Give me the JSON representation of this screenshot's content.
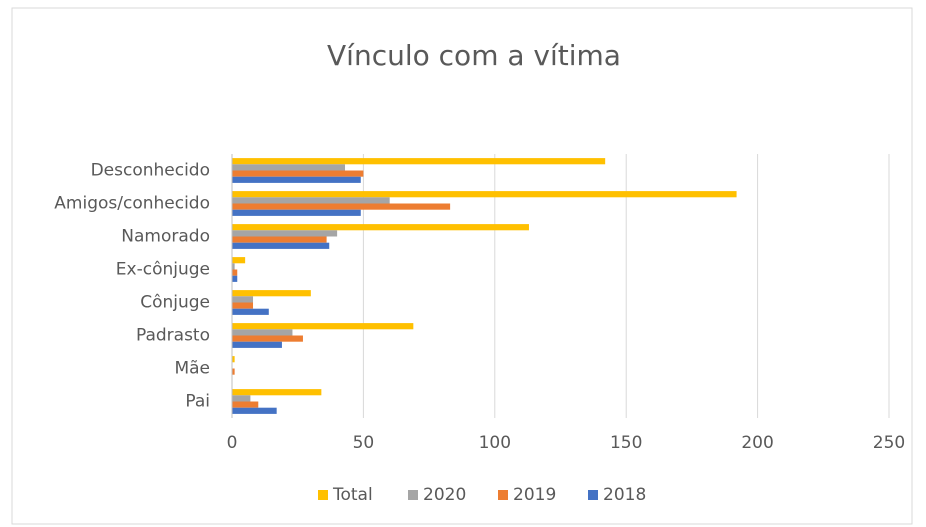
{
  "chart_data": {
    "type": "hbar",
    "title": "Vínculo com a vítima",
    "categories": [
      "Pai",
      "Mãe",
      "Padrasto",
      "Cônjuge",
      "Ex-cônjuge",
      "Namorado",
      "Amigos/conhecido",
      "Desconhecido"
    ],
    "series": [
      {
        "name": "Total",
        "color": "#ffc000",
        "values": [
          34,
          1,
          69,
          30,
          5,
          113,
          192,
          142
        ]
      },
      {
        "name": "2020",
        "color": "#a5a5a5",
        "values": [
          7,
          0,
          23,
          8,
          1,
          40,
          60,
          43
        ]
      },
      {
        "name": "2019",
        "color": "#ed7d31",
        "values": [
          10,
          1,
          27,
          8,
          2,
          36,
          83,
          50
        ]
      },
      {
        "name": "2018",
        "color": "#4472c4",
        "values": [
          17,
          0,
          19,
          14,
          2,
          37,
          49,
          49
        ]
      }
    ],
    "xlim": [
      0,
      250
    ],
    "xticks": [
      0,
      50,
      100,
      150,
      200,
      250
    ],
    "grid": true,
    "legend": "bottom"
  }
}
